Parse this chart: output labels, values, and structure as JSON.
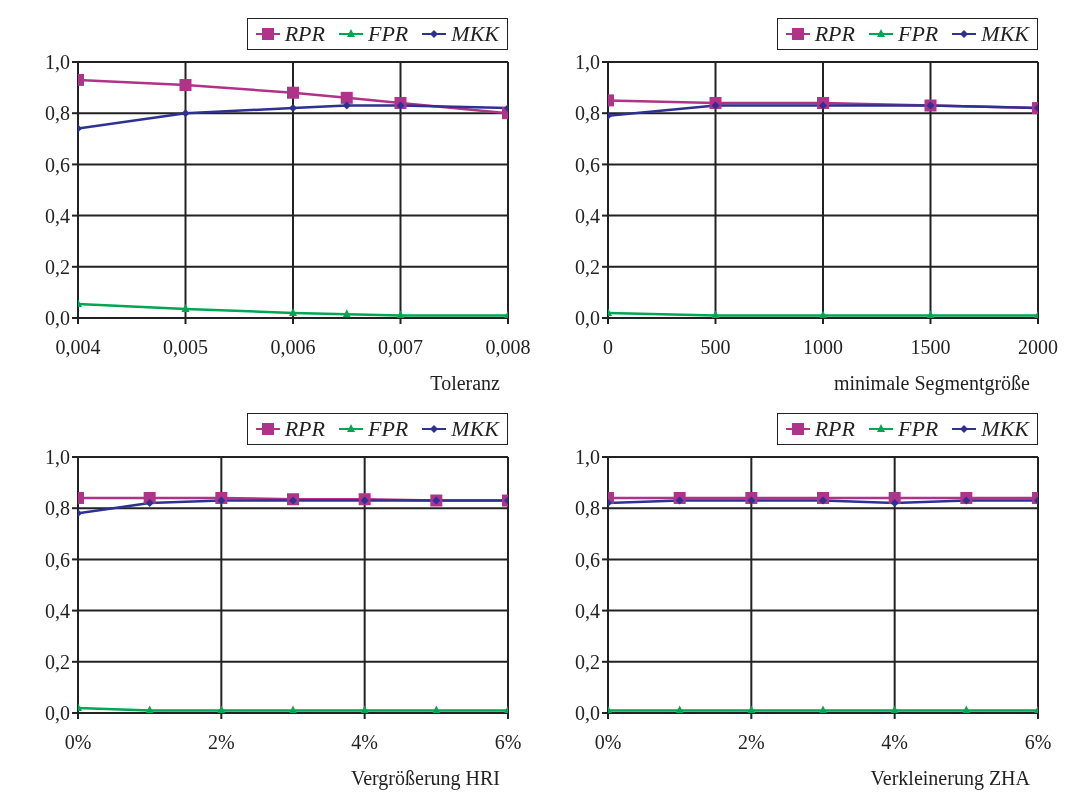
{
  "chart_data": [
    {
      "type": "line",
      "xlabel": "Toleranz",
      "x": [
        0.004,
        0.005,
        0.006,
        0.0065,
        0.007,
        0.008
      ],
      "xlim": [
        0.004,
        0.008
      ],
      "xticks": [
        {
          "value": 0.004,
          "label": "0,004"
        },
        {
          "value": 0.005,
          "label": "0,005"
        },
        {
          "value": 0.006,
          "label": "0,006"
        },
        {
          "value": 0.007,
          "label": "0,007"
        },
        {
          "value": 0.008,
          "label": "0,008"
        }
      ],
      "ylim": [
        0,
        1
      ],
      "yticks": [
        {
          "value": 0,
          "label": "0,0"
        },
        {
          "value": 0.2,
          "label": "0,2"
        },
        {
          "value": 0.4,
          "label": "0,4"
        },
        {
          "value": 0.6,
          "label": "0,6"
        },
        {
          "value": 0.8,
          "label": "0,8"
        },
        {
          "value": 1,
          "label": "1,0"
        }
      ],
      "grid": true,
      "legend": "top right",
      "line_style": "solid",
      "series": [
        {
          "name": "RPR",
          "color": "#b0338a",
          "marker": "square",
          "values": [
            0.93,
            0.91,
            0.88,
            0.86,
            0.84,
            0.8
          ]
        },
        {
          "name": "FPR",
          "color": "#00a651",
          "marker": "triangle",
          "values": [
            0.055,
            0.035,
            0.02,
            0.015,
            0.01,
            0.01
          ]
        },
        {
          "name": "MKK",
          "color": "#2e3192",
          "marker": "diamond",
          "values": [
            0.74,
            0.8,
            0.82,
            0.83,
            0.83,
            0.82
          ]
        }
      ]
    },
    {
      "type": "line",
      "xlabel": "minimale Segmentgröße",
      "x": [
        0,
        500,
        1000,
        1500,
        2000
      ],
      "xlim": [
        0,
        2000
      ],
      "xticks": [
        0,
        500,
        1000,
        1500,
        2000
      ],
      "ylim": [
        0,
        1
      ],
      "yticks": [
        {
          "value": 0,
          "label": "0,0"
        },
        {
          "value": 0.2,
          "label": "0,2"
        },
        {
          "value": 0.4,
          "label": "0,4"
        },
        {
          "value": 0.6,
          "label": "0,6"
        },
        {
          "value": 0.8,
          "label": "0,8"
        },
        {
          "value": 1,
          "label": "1,0"
        }
      ],
      "grid": true,
      "legend": "top right",
      "line_style": "solid",
      "series": [
        {
          "name": "RPR",
          "color": "#b0338a",
          "marker": "square",
          "values": [
            0.85,
            0.84,
            0.84,
            0.83,
            0.82
          ]
        },
        {
          "name": "FPR",
          "color": "#00a651",
          "marker": "triangle",
          "values": [
            0.02,
            0.01,
            0.01,
            0.01,
            0.01
          ]
        },
        {
          "name": "MKK",
          "color": "#2e3192",
          "marker": "diamond",
          "values": [
            0.79,
            0.83,
            0.83,
            0.83,
            0.82
          ]
        }
      ]
    },
    {
      "type": "line",
      "xlabel": "Vergrößerung HRI",
      "x": [
        0,
        1,
        2,
        3,
        4,
        5,
        6
      ],
      "xlim": [
        0,
        6
      ],
      "xticks": [
        {
          "value": 0,
          "label": "0%"
        },
        {
          "value": 2,
          "label": "2%"
        },
        {
          "value": 4,
          "label": "4%"
        },
        {
          "value": 6,
          "label": "6%"
        }
      ],
      "ylim": [
        0,
        1
      ],
      "yticks": [
        {
          "value": 0,
          "label": "0,0"
        },
        {
          "value": 0.2,
          "label": "0,2"
        },
        {
          "value": 0.4,
          "label": "0,4"
        },
        {
          "value": 0.6,
          "label": "0,6"
        },
        {
          "value": 0.8,
          "label": "0,8"
        },
        {
          "value": 1,
          "label": "1,0"
        }
      ],
      "grid": true,
      "legend": "top right",
      "line_style": "solid",
      "series": [
        {
          "name": "RPR",
          "color": "#b0338a",
          "marker": "square",
          "values": [
            0.84,
            0.84,
            0.84,
            0.835,
            0.835,
            0.83,
            0.83
          ]
        },
        {
          "name": "FPR",
          "color": "#00a651",
          "marker": "triangle",
          "values": [
            0.02,
            0.01,
            0.01,
            0.01,
            0.01,
            0.01,
            0.01
          ]
        },
        {
          "name": "MKK",
          "color": "#2e3192",
          "marker": "diamond",
          "values": [
            0.78,
            0.82,
            0.83,
            0.83,
            0.83,
            0.83,
            0.83
          ]
        }
      ]
    },
    {
      "type": "line",
      "xlabel": "Verkleinerung ZHA",
      "x": [
        0,
        1,
        2,
        3,
        4,
        5,
        6
      ],
      "xlim": [
        0,
        6
      ],
      "xticks": [
        {
          "value": 0,
          "label": "0%"
        },
        {
          "value": 2,
          "label": "2%"
        },
        {
          "value": 4,
          "label": "4%"
        },
        {
          "value": 6,
          "label": "6%"
        }
      ],
      "ylim": [
        0,
        1
      ],
      "yticks": [
        {
          "value": 0,
          "label": "0,0"
        },
        {
          "value": 0.2,
          "label": "0,2"
        },
        {
          "value": 0.4,
          "label": "0,4"
        },
        {
          "value": 0.6,
          "label": "0,6"
        },
        {
          "value": 0.8,
          "label": "0,8"
        },
        {
          "value": 1,
          "label": "1,0"
        }
      ],
      "grid": true,
      "legend": "top right",
      "line_style": "solid",
      "series": [
        {
          "name": "RPR",
          "color": "#b0338a",
          "marker": "square",
          "values": [
            0.84,
            0.84,
            0.84,
            0.84,
            0.84,
            0.84,
            0.84
          ]
        },
        {
          "name": "FPR",
          "color": "#00a651",
          "marker": "triangle",
          "values": [
            0.01,
            0.01,
            0.01,
            0.01,
            0.01,
            0.01,
            0.01
          ]
        },
        {
          "name": "MKK",
          "color": "#2e3192",
          "marker": "diamond",
          "values": [
            0.82,
            0.83,
            0.83,
            0.83,
            0.82,
            0.83,
            0.83
          ]
        }
      ]
    }
  ]
}
